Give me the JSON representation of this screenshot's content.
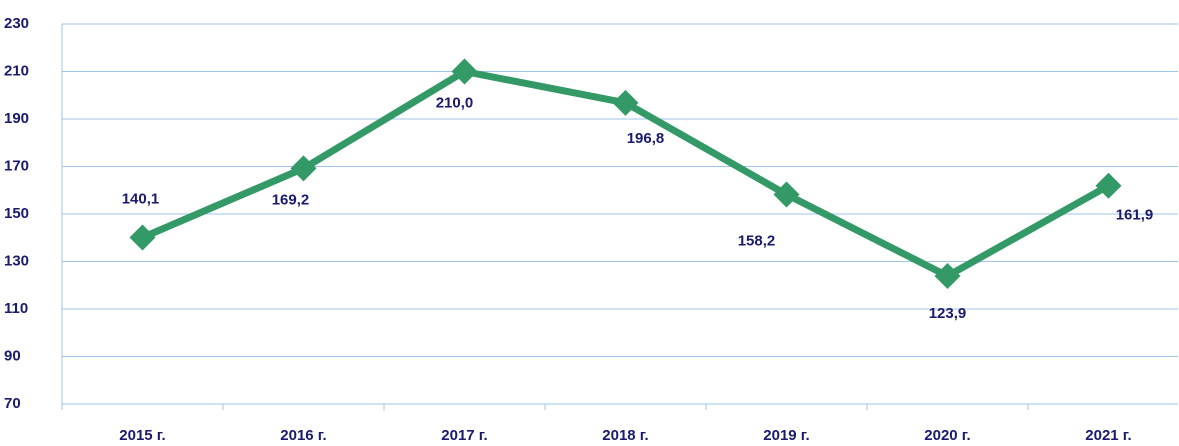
{
  "chart_data": {
    "type": "line",
    "categories": [
      "2015 г.",
      "2016 г.",
      "2017 г.",
      "2018 г.",
      "2019 г.",
      "2020 г.",
      "2021 г."
    ],
    "values": [
      140.1,
      169.2,
      210.0,
      196.8,
      158.2,
      123.9,
      161.9
    ],
    "value_labels": [
      "140,1",
      "169,2",
      "210,0",
      "196,8",
      "158,2",
      "123,9",
      "161,9"
    ],
    "color": "#339966",
    "ylim": [
      70,
      230
    ],
    "yticks": [
      70,
      90,
      110,
      130,
      150,
      170,
      190,
      210,
      230
    ],
    "grid": true
  }
}
